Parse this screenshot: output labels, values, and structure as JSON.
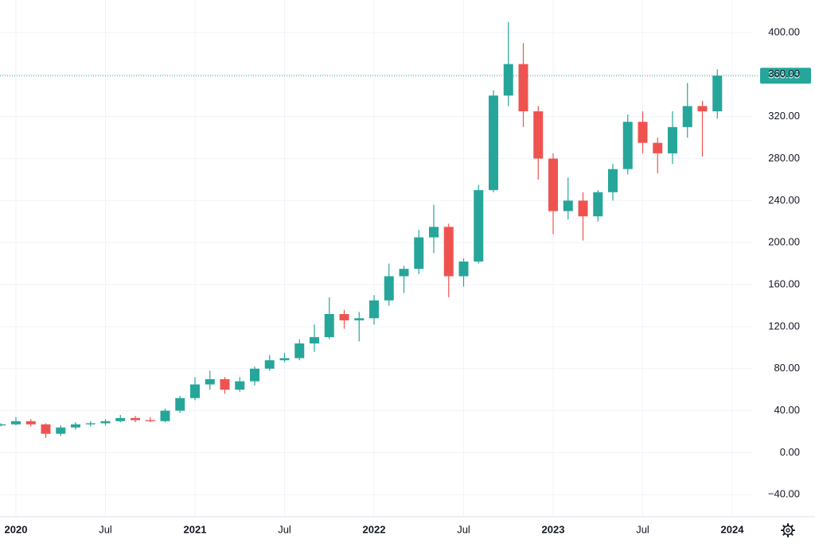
{
  "chart_data": {
    "type": "candlestick",
    "x": [
      "2019-12",
      "2020-01",
      "2020-02",
      "2020-03",
      "2020-04",
      "2020-05",
      "2020-06",
      "2020-07",
      "2020-08",
      "2020-09",
      "2020-10",
      "2020-11",
      "2020-12",
      "2021-01",
      "2021-02",
      "2021-03",
      "2021-04",
      "2021-05",
      "2021-06",
      "2021-07",
      "2021-08",
      "2021-09",
      "2021-10",
      "2021-11",
      "2021-12",
      "2022-01",
      "2022-02",
      "2022-03",
      "2022-04",
      "2022-05",
      "2022-06",
      "2022-07",
      "2022-08",
      "2022-09",
      "2022-10",
      "2022-11",
      "2022-12",
      "2023-01",
      "2023-02",
      "2023-03",
      "2023-04",
      "2023-05",
      "2023-06",
      "2023-07",
      "2023-08",
      "2023-09",
      "2023-10",
      "2023-11",
      "2023-12"
    ],
    "open": [
      26,
      27,
      30,
      27,
      18,
      24,
      27,
      28,
      30,
      33,
      31,
      30,
      40,
      52,
      65,
      70,
      60,
      68,
      80,
      88,
      90,
      104,
      110,
      132,
      126,
      128,
      145,
      168,
      175,
      205,
      215,
      168,
      182,
      250,
      340,
      370,
      325,
      280,
      230,
      240,
      225,
      248,
      270,
      315,
      295,
      285,
      310,
      330,
      325
    ],
    "high": [
      28,
      34,
      32,
      28,
      26,
      29,
      30,
      32,
      36,
      35,
      34,
      42,
      54,
      72,
      78,
      72,
      72,
      82,
      93,
      95,
      108,
      122,
      148,
      136,
      134,
      150,
      180,
      178,
      212,
      236,
      218,
      185,
      255,
      345,
      410,
      390,
      330,
      285,
      262,
      248,
      250,
      275,
      322,
      325,
      300,
      325,
      352,
      335,
      365
    ],
    "low": [
      25,
      26,
      25,
      14,
      16,
      22,
      25,
      26,
      29,
      29,
      29,
      29,
      38,
      50,
      60,
      56,
      58,
      64,
      78,
      86,
      88,
      96,
      108,
      118,
      106,
      122,
      140,
      152,
      170,
      190,
      148,
      158,
      180,
      248,
      330,
      310,
      260,
      208,
      222,
      202,
      220,
      240,
      265,
      285,
      266,
      275,
      300,
      282,
      318
    ],
    "close": [
      27,
      30,
      27,
      18,
      24,
      27,
      28,
      30,
      33,
      31,
      30,
      40,
      52,
      65,
      70,
      60,
      68,
      80,
      88,
      90,
      104,
      110,
      132,
      126,
      128,
      145,
      168,
      175,
      205,
      215,
      168,
      182,
      250,
      340,
      370,
      325,
      280,
      230,
      240,
      225,
      248,
      270,
      315,
      295,
      285,
      310,
      330,
      325,
      358.95
    ],
    "up_color": "#26a69a",
    "down_color": "#ef5350",
    "ylim": [
      -61,
      431
    ],
    "yticks": [
      {
        "value": -40,
        "label": "−40.00"
      },
      {
        "value": 0,
        "label": "0.00"
      },
      {
        "value": 40,
        "label": "40.00"
      },
      {
        "value": 80,
        "label": "80.00"
      },
      {
        "value": 120,
        "label": "120.00"
      },
      {
        "value": 160,
        "label": "160.00"
      },
      {
        "value": 200,
        "label": "200.00"
      },
      {
        "value": 240,
        "label": "240.00"
      },
      {
        "value": 280,
        "label": "280.00"
      },
      {
        "value": 320,
        "label": "320.00"
      },
      {
        "value": 360,
        "label": "360.00"
      },
      {
        "value": 400,
        "label": "400.00"
      }
    ],
    "xticks": [
      {
        "value": "2020-01",
        "label": "2020"
      },
      {
        "value": "2020-07",
        "label": "Jul"
      },
      {
        "value": "2021-01",
        "label": "2021"
      },
      {
        "value": "2021-07",
        "label": "Jul"
      },
      {
        "value": "2022-01",
        "label": "2022"
      },
      {
        "value": "2022-07",
        "label": "Jul"
      },
      {
        "value": "2023-01",
        "label": "2023"
      },
      {
        "value": "2023-07",
        "label": "Jul"
      },
      {
        "value": "2024-01",
        "label": "2024"
      }
    ],
    "last_price": {
      "value": 358.95,
      "label": "358.95"
    },
    "grid": true
  }
}
